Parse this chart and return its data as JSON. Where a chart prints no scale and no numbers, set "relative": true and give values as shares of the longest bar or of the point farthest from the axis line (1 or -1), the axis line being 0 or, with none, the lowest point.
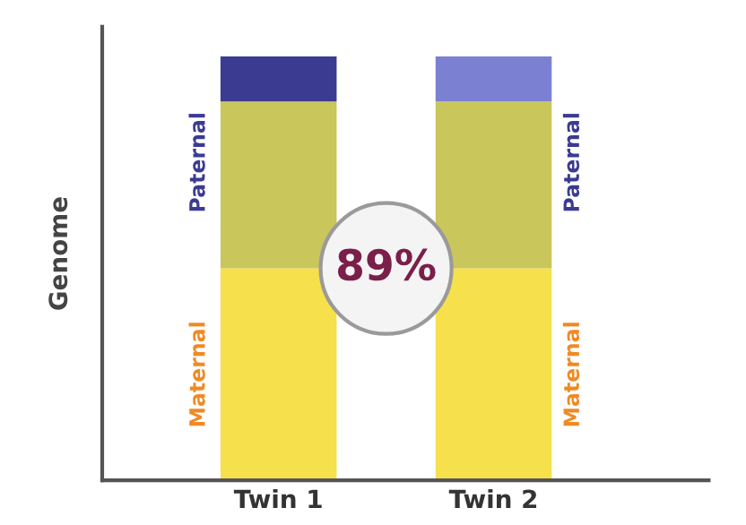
{
  "chart_data": {
    "type": "bar",
    "stacked": true,
    "relative": true,
    "ylabel": "Genome",
    "categories": [
      "Twin 1",
      "Twin 2"
    ],
    "series": [
      {
        "color": "#f6e04c",
        "values": [
          0.5,
          0.5
        ]
      },
      {
        "color": "#c9c65c",
        "values": [
          0.394,
          0.394
        ]
      },
      {
        "colors": [
          "#3b3b92",
          "#7c80d2"
        ],
        "values": [
          0.106,
          0.106
        ]
      }
    ],
    "annotations": [
      "Paternal",
      "Maternal",
      "Paternal",
      "Maternal",
      "89%"
    ],
    "grid": false,
    "legend": false
  }
}
